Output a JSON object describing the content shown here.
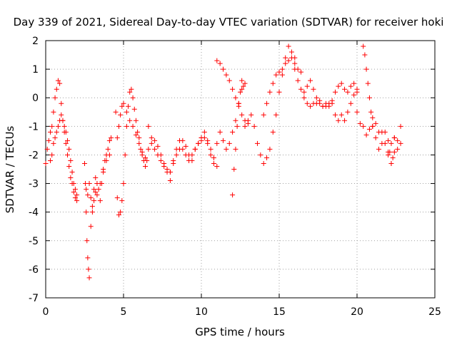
{
  "chart_data": {
    "type": "scatter",
    "title": "Day 339 of 2021, Sidereal Day-to-day VTEC variation (SDTVAR) for receiver hoki",
    "xlabel": "GPS time / hours",
    "ylabel": "SDTVAR / TECUs",
    "xlim": [
      0,
      25
    ],
    "ylim": [
      -7,
      2
    ],
    "xticks": [
      0,
      5,
      10,
      15,
      20,
      25
    ],
    "yticks": [
      -7,
      -6,
      -5,
      -4,
      -3,
      -2,
      -1,
      0,
      1,
      2
    ],
    "grid": true,
    "marker": "+",
    "series": [
      {
        "name": "SDTVAR",
        "color": "#ff0000",
        "x": [
          0.0,
          0.1,
          0.2,
          0.3,
          0.4,
          0.5,
          0.6,
          0.7,
          0.8,
          0.9,
          1.0,
          1.1,
          1.2,
          1.3,
          1.4,
          1.5,
          1.6,
          1.7,
          1.8,
          1.9,
          2.0,
          0.3,
          0.4,
          0.5,
          0.6,
          0.7,
          0.8,
          0.9,
          1.0,
          1.1,
          1.2,
          1.3,
          1.4,
          1.5,
          1.6,
          1.7,
          1.8,
          1.9,
          2.0,
          2.5,
          2.55,
          2.6,
          2.65,
          2.7,
          2.75,
          2.8,
          2.9,
          3.0,
          3.1,
          3.2,
          3.3,
          3.4,
          3.5,
          3.6,
          3.7,
          3.8,
          3.9,
          4.0,
          4.1,
          4.2,
          2.6,
          2.7,
          2.8,
          2.9,
          3.0,
          3.1,
          3.2,
          3.3,
          3.5,
          3.7,
          3.9,
          4.1,
          4.5,
          4.6,
          4.7,
          4.8,
          4.9,
          5.0,
          5.1,
          5.2,
          5.3,
          5.4,
          5.5,
          5.6,
          5.7,
          5.8,
          5.9,
          6.0,
          6.1,
          6.2,
          6.3,
          6.4,
          6.5,
          4.6,
          4.7,
          4.8,
          4.9,
          5.0,
          5.2,
          5.4,
          5.6,
          5.8,
          6.0,
          6.2,
          6.4,
          6.6,
          6.8,
          7.0,
          7.2,
          7.4,
          7.6,
          7.8,
          8.0,
          6.6,
          6.8,
          7.0,
          7.2,
          7.4,
          7.6,
          7.8,
          8.0,
          8.2,
          8.4,
          8.6,
          8.8,
          9.0,
          9.2,
          9.4,
          9.6,
          9.8,
          10.0,
          8.0,
          8.2,
          8.4,
          8.6,
          8.8,
          9.0,
          9.2,
          9.4,
          9.6,
          9.8,
          10.0,
          10.2,
          10.4,
          10.6,
          10.8,
          11.0,
          10.0,
          10.2,
          10.4,
          10.6,
          10.8,
          11.0,
          11.2,
          11.4,
          11.6,
          11.8,
          12.0,
          12.2,
          12.4,
          12.6,
          11.0,
          11.2,
          11.4,
          11.6,
          11.8,
          12.0,
          12.2,
          12.4,
          12.6,
          12.8,
          13.0,
          12.0,
          12.1,
          12.2,
          12.3,
          12.4,
          12.5,
          12.6,
          12.7,
          12.8,
          12.8,
          13.0,
          13.2,
          13.4,
          13.6,
          13.8,
          14.0,
          14.2,
          14.4,
          14.6,
          14.8,
          15.0,
          15.2,
          15.4,
          15.6,
          15.8,
          16.0,
          14.0,
          14.2,
          14.4,
          14.6,
          14.8,
          15.0,
          15.2,
          15.4,
          15.6,
          15.8,
          16.0,
          16.2,
          16.4,
          16.0,
          16.2,
          16.4,
          16.6,
          16.8,
          17.0,
          17.2,
          17.4,
          17.6,
          17.8,
          18.0,
          18.2,
          18.4,
          18.6,
          18.8,
          19.0,
          19.2,
          19.4,
          19.6,
          19.8,
          20.0,
          16.6,
          16.8,
          17.0,
          17.2,
          17.4,
          17.6,
          17.8,
          18.0,
          18.2,
          18.4,
          18.6,
          18.8,
          19.0,
          19.2,
          19.4,
          19.6,
          19.8,
          20.0,
          20.4,
          20.5,
          20.6,
          20.7,
          20.8,
          20.9,
          21.0,
          20.0,
          20.2,
          20.4,
          20.6,
          20.8,
          21.0,
          21.2,
          21.4,
          21.6,
          21.8,
          22.0,
          22.2,
          22.4,
          22.6,
          22.8,
          21.0,
          21.2,
          21.4,
          21.6,
          21.8,
          22.0,
          22.2,
          22.4,
          22.6,
          22.8,
          22.0,
          22.1,
          22.2,
          22.3,
          22.4
        ],
        "y": [
          -2.3,
          -1.8,
          -1.5,
          -1.2,
          -1.0,
          -0.5,
          0.0,
          0.3,
          0.6,
          0.5,
          -0.2,
          -0.8,
          -1.2,
          -1.6,
          -2.0,
          -2.4,
          -2.8,
          -3.0,
          -3.3,
          -3.5,
          -3.6,
          -2.2,
          -2.0,
          -1.6,
          -1.4,
          -1.2,
          -1.0,
          -0.8,
          -0.6,
          -0.8,
          -1.0,
          -1.2,
          -1.5,
          -1.8,
          -2.2,
          -2.6,
          -3.0,
          -3.2,
          -3.4,
          -2.3,
          -3.0,
          -4.0,
          -5.0,
          -5.6,
          -6.0,
          -6.3,
          -4.5,
          -4.0,
          -3.6,
          -3.3,
          -3.0,
          -3.2,
          -3.6,
          -3.0,
          -2.6,
          -2.2,
          -2.0,
          -1.8,
          -1.5,
          -1.4,
          -3.2,
          -3.4,
          -3.0,
          -3.5,
          -3.8,
          -3.2,
          -2.8,
          -3.4,
          -3.0,
          -2.5,
          -2.2,
          -2.0,
          -0.5,
          -3.5,
          -4.1,
          -4.0,
          -3.6,
          -3.0,
          -2.0,
          -1.0,
          -0.3,
          0.2,
          0.3,
          0.0,
          -0.4,
          -0.8,
          -1.2,
          -1.4,
          -1.8,
          -2.0,
          -2.2,
          -2.4,
          -2.2,
          -1.4,
          -1.0,
          -0.6,
          -0.3,
          -0.2,
          -0.5,
          -0.8,
          -1.0,
          -1.3,
          -1.6,
          -1.9,
          -2.1,
          -1.8,
          -1.6,
          -1.5,
          -1.7,
          -2.0,
          -2.3,
          -2.5,
          -2.6,
          -1.0,
          -1.4,
          -1.8,
          -2.0,
          -2.2,
          -2.4,
          -2.6,
          -2.9,
          -2.2,
          -1.8,
          -1.5,
          -1.8,
          -2.0,
          -2.2,
          -2.0,
          -1.8,
          -1.6,
          -1.4,
          -2.6,
          -2.3,
          -2.0,
          -1.8,
          -1.5,
          -1.7,
          -2.0,
          -2.2,
          -1.8,
          -1.6,
          -1.5,
          -1.4,
          -1.5,
          -1.8,
          -2.1,
          -2.4,
          -1.4,
          -1.2,
          -1.6,
          -2.0,
          -2.3,
          -1.6,
          -1.2,
          -1.5,
          -1.8,
          -1.6,
          -1.2,
          -0.8,
          -0.2,
          0.6,
          1.3,
          1.2,
          1.0,
          0.8,
          0.6,
          0.3,
          0.0,
          -0.3,
          -0.6,
          -0.8,
          -0.9,
          -3.4,
          -2.5,
          -1.8,
          -1.0,
          -0.2,
          0.2,
          0.3,
          0.4,
          0.5,
          -1.0,
          -0.8,
          -0.6,
          -1.0,
          -1.6,
          -2.0,
          -2.3,
          -2.1,
          -1.8,
          -1.2,
          -0.6,
          0.2,
          0.8,
          1.4,
          1.8,
          1.6,
          1.4,
          -0.6,
          -0.2,
          0.2,
          0.5,
          0.8,
          0.9,
          1.0,
          1.2,
          1.3,
          1.4,
          1.2,
          1.0,
          0.9,
          1.0,
          0.6,
          0.3,
          0.2,
          0.4,
          0.6,
          0.3,
          0.0,
          -0.2,
          -0.3,
          -0.3,
          -0.2,
          -0.1,
          0.2,
          0.4,
          0.5,
          0.3,
          0.2,
          0.4,
          0.5,
          0.2,
          0.0,
          -0.2,
          -0.3,
          -0.2,
          -0.2,
          -0.1,
          -0.3,
          -0.2,
          -0.3,
          -0.2,
          -0.6,
          -0.8,
          -0.6,
          -0.8,
          -0.5,
          -0.2,
          0.1,
          0.3,
          1.8,
          1.5,
          1.0,
          0.5,
          0.0,
          -0.5,
          -1.0,
          -0.5,
          -0.9,
          -1.0,
          -1.3,
          -1.1,
          -1.0,
          -1.4,
          -1.8,
          -1.2,
          -1.6,
          -1.9,
          -2.3,
          -1.4,
          -1.8,
          -1.6,
          -0.7,
          -0.9,
          -1.2,
          -1.6,
          -1.2,
          -1.5,
          -1.6,
          -1.4,
          -1.5,
          -1.0,
          -2.0,
          -1.9,
          -2.3,
          -2.1,
          -1.9
        ]
      }
    ]
  }
}
